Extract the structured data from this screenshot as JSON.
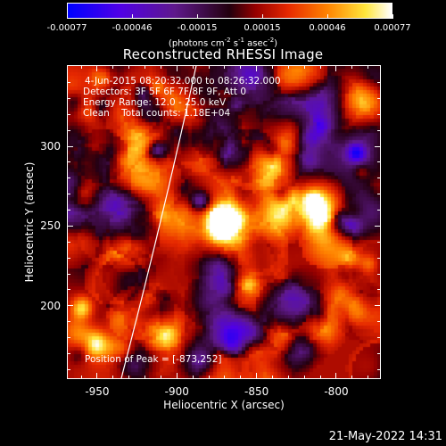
{
  "colorbar": {
    "tick_labels": [
      "-0.00077",
      "-0.00046",
      "-0.00015",
      "0.00015",
      "0.00046",
      "0.00077"
    ],
    "range": [
      -0.00077,
      0.00077
    ],
    "units_prefix": "(photons cm",
    "units_exp1": "-2",
    "units_mid1": " s",
    "units_exp2": "-1",
    "units_mid2": " asec",
    "units_exp3": "-2",
    "units_suffix": ")",
    "colormap": "rainbow-to-hot"
  },
  "plot": {
    "title": "Reconstructed RHESSI Image",
    "info": {
      "time_range": "4-Jun-2015 08:20:32.000 to 08:26:32.000",
      "detectors": "Detectors: 3F 5F 6F 7F 8F 9F, Att 0",
      "energy_range": "Energy Range: 12.0 - 25.0 keV",
      "clean_counts": "Clean    Total counts: 1.18E+04"
    },
    "peak_label": "Position of Peak = [-873,252]",
    "peak_position": [
      -873,
      252
    ],
    "xlabel": "Heliocentric X (arcsec)",
    "ylabel": "Heliocentric Y (arcsec)",
    "x_ticks": [
      "-950",
      "-900",
      "-850",
      "-800"
    ],
    "y_ticks": [
      "300",
      "250",
      "200"
    ],
    "colors": {
      "limb": "#ffffff",
      "background": "#000000"
    }
  },
  "chart_data": {
    "type": "heatmap",
    "title": "Reconstructed RHESSI Image",
    "xlabel": "Heliocentric X (arcsec)",
    "ylabel": "Heliocentric Y (arcsec)",
    "xlim": [
      -969,
      -772
    ],
    "ylim": [
      154,
      351
    ],
    "x_ticks": [
      -950,
      -900,
      -850,
      -800
    ],
    "y_ticks": [
      200,
      250,
      300
    ],
    "colorbar_range": [
      -0.00077,
      0.00077
    ],
    "colorbar_ticks": [
      -0.00077,
      -0.00046,
      -0.00015,
      0.00015,
      0.00046,
      0.00077
    ],
    "peak": {
      "x": -873,
      "y": 252
    },
    "grid": false
  },
  "footer": {
    "timestamp": "21-May-2022 14:31"
  }
}
